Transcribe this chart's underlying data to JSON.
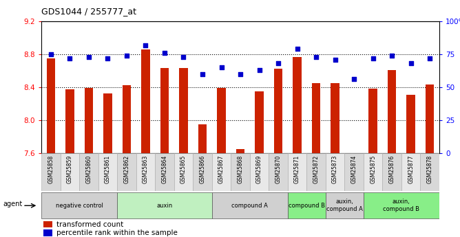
{
  "title": "GDS1044 / 255777_at",
  "samples": [
    "GSM25858",
    "GSM25859",
    "GSM25860",
    "GSM25861",
    "GSM25862",
    "GSM25863",
    "GSM25864",
    "GSM25865",
    "GSM25866",
    "GSM25867",
    "GSM25868",
    "GSM25869",
    "GSM25870",
    "GSM25871",
    "GSM25872",
    "GSM25873",
    "GSM25874",
    "GSM25875",
    "GSM25876",
    "GSM25877",
    "GSM25878"
  ],
  "bar_values": [
    8.75,
    8.37,
    8.39,
    8.32,
    8.42,
    8.86,
    8.63,
    8.63,
    7.95,
    8.39,
    7.65,
    8.35,
    8.62,
    8.77,
    8.45,
    8.45,
    7.6,
    8.38,
    8.61,
    8.31,
    8.43
  ],
  "percentile_values": [
    75,
    72,
    73,
    72,
    74,
    82,
    76,
    73,
    60,
    65,
    60,
    63,
    68,
    79,
    73,
    71,
    56,
    72,
    74,
    68,
    72
  ],
  "ymin": 7.6,
  "ymax": 9.2,
  "yticks_left": [
    7.6,
    8.0,
    8.4,
    8.8,
    9.2
  ],
  "yticks_right": [
    0,
    25,
    50,
    75,
    100
  ],
  "bar_color": "#cc2200",
  "dot_color": "#0000cc",
  "group_labels": [
    "negative control",
    "auxin",
    "compound A",
    "compound B",
    "auxin,\ncompound A",
    "auxin,\ncompound B"
  ],
  "group_starts": [
    0,
    4,
    9,
    13,
    15,
    17
  ],
  "group_ends": [
    4,
    9,
    13,
    15,
    17,
    21
  ],
  "group_colors": [
    "#d0d0d0",
    "#c0f0c0",
    "#d0d0d0",
    "#88ee88",
    "#d0d0d0",
    "#88ee88"
  ],
  "legend_bar_label": "transformed count",
  "legend_dot_label": "percentile rank within the sample"
}
